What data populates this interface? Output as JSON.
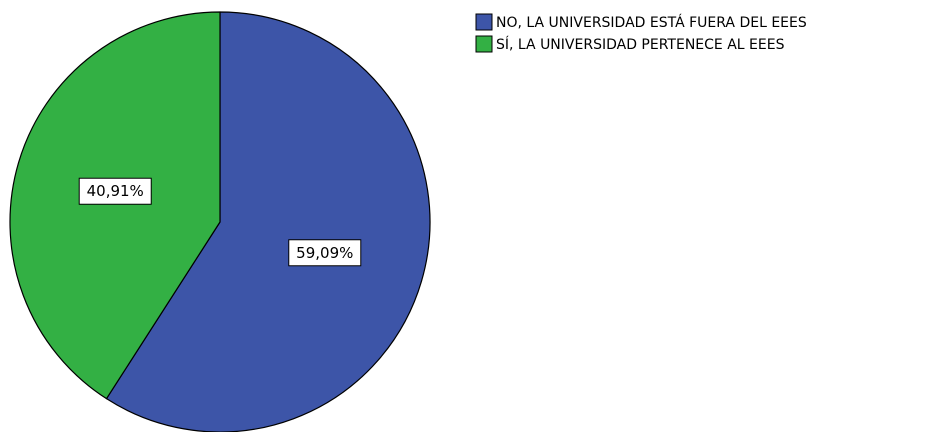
{
  "chart_data": {
    "type": "pie",
    "title": "",
    "categories": [
      "NO, LA UNIVERSIDAD ESTÁ FUERA DEL EEES",
      "SÍ, LA UNIVERSIDAD PERTENECE AL EEES"
    ],
    "values": [
      59.09,
      40.91
    ],
    "data_labels": [
      "59,09%",
      "40,91%"
    ],
    "colors": [
      "#3d55a8",
      "#33b044"
    ],
    "start_angle_deg": 0,
    "direction": "clockwise",
    "legend_position": "top-right"
  }
}
